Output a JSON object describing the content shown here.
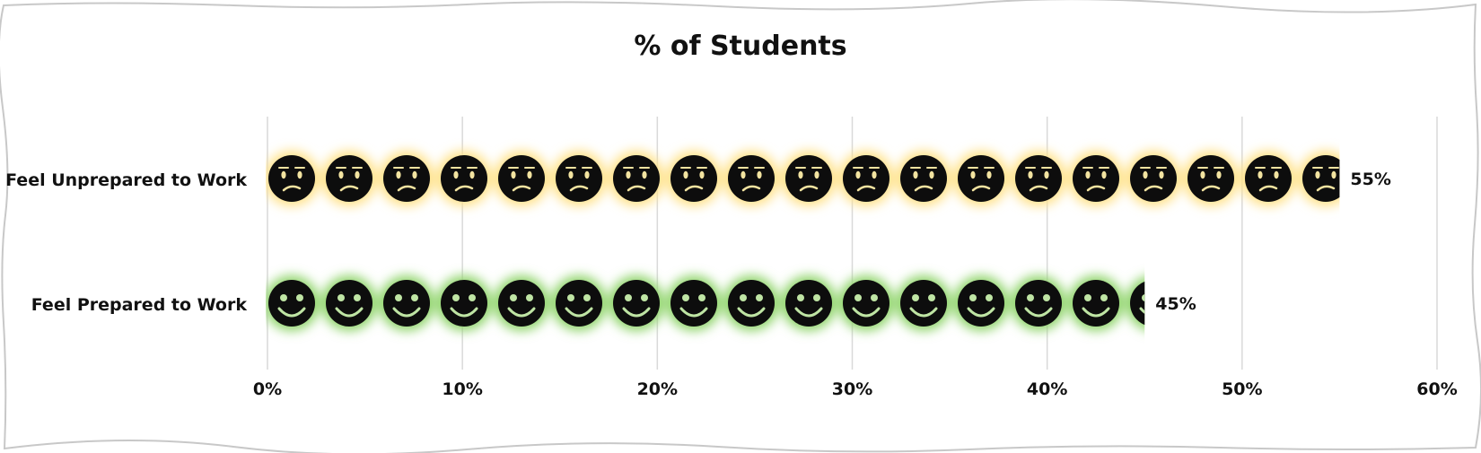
{
  "chart_data": {
    "type": "bar",
    "title": "% of Students",
    "orientation": "horizontal",
    "categories": [
      "Feel Unprepared to Work",
      "Feel Prepared to Work"
    ],
    "values": [
      55,
      45
    ],
    "data_labels": [
      "55%",
      "45%"
    ],
    "xlim": [
      0,
      60
    ],
    "x_ticks": [
      0,
      10,
      20,
      30,
      40,
      50,
      60
    ],
    "x_tick_labels": [
      "0%",
      "10%",
      "20%",
      "30%",
      "40%",
      "50%",
      "60%"
    ],
    "grid": "vertical",
    "legend": "none",
    "bar_icons": [
      "worried-face-icon",
      "smiling-face-icon"
    ],
    "bar_glow_colors": [
      "#ffe28a",
      "#8fd46a"
    ],
    "icon_color": "#0d0d0d",
    "feature_colors": [
      "#f2e3a0",
      "#bfe5a4"
    ]
  }
}
